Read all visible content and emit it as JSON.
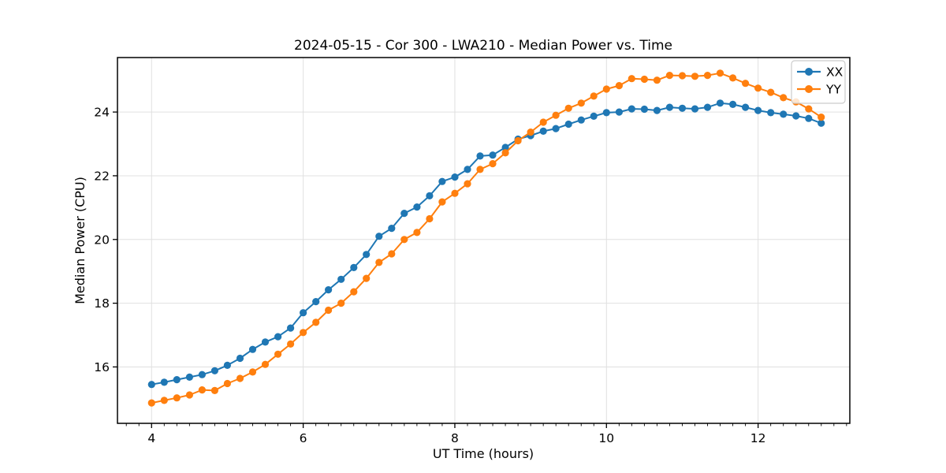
{
  "chart_data": {
    "type": "line",
    "title": "2024-05-15 - Cor 300 - LWA210 - Median Power vs. Time",
    "xlabel": "UT Time (hours)",
    "ylabel": "Median Power (CPU)",
    "xlim": [
      3.55,
      13.21
    ],
    "ylim": [
      14.23,
      25.71
    ],
    "xticks": [
      4,
      6,
      8,
      10,
      12
    ],
    "yticks": [
      16,
      18,
      20,
      22,
      24
    ],
    "x_minor_step": 0.166667,
    "grid": true,
    "grid_color": "#e0e0e0",
    "legend_position": "upper right",
    "x": [
      4.0,
      4.167,
      4.333,
      4.5,
      4.667,
      4.833,
      5.0,
      5.167,
      5.333,
      5.5,
      5.667,
      5.833,
      6.0,
      6.167,
      6.333,
      6.5,
      6.667,
      6.833,
      7.0,
      7.167,
      7.333,
      7.5,
      7.667,
      7.833,
      8.0,
      8.167,
      8.333,
      8.5,
      8.667,
      8.833,
      9.0,
      9.167,
      9.333,
      9.5,
      9.667,
      9.833,
      10.0,
      10.167,
      10.333,
      10.5,
      10.667,
      10.833,
      11.0,
      11.167,
      11.333,
      11.5,
      11.667,
      11.833,
      12.0,
      12.167,
      12.333,
      12.5,
      12.667,
      12.833
    ],
    "series": [
      {
        "name": "XX",
        "color": "#1f77b4",
        "values": [
          15.45,
          15.52,
          15.6,
          15.68,
          15.76,
          15.88,
          16.05,
          16.27,
          16.55,
          16.78,
          16.95,
          17.22,
          17.7,
          18.05,
          18.42,
          18.75,
          19.12,
          19.53,
          20.1,
          20.35,
          20.82,
          21.02,
          21.37,
          21.82,
          21.96,
          22.2,
          22.62,
          22.65,
          22.89,
          23.15,
          23.26,
          23.4,
          23.48,
          23.62,
          23.75,
          23.87,
          23.98,
          24.0,
          24.1,
          24.09,
          24.05,
          24.15,
          24.12,
          24.1,
          24.15,
          24.28,
          24.24,
          24.15,
          24.05,
          23.98,
          23.93,
          23.88,
          23.8,
          23.65
        ]
      },
      {
        "name": "YY",
        "color": "#ff7f0e",
        "values": [
          14.87,
          14.95,
          15.03,
          15.12,
          15.28,
          15.26,
          15.48,
          15.64,
          15.84,
          16.08,
          16.4,
          16.72,
          17.08,
          17.4,
          17.78,
          18.0,
          18.36,
          18.78,
          19.28,
          19.55,
          20.0,
          20.22,
          20.65,
          21.18,
          21.45,
          21.75,
          22.2,
          22.38,
          22.72,
          23.1,
          23.37,
          23.68,
          23.9,
          24.12,
          24.28,
          24.5,
          24.72,
          24.83,
          25.05,
          25.03,
          25.0,
          25.15,
          25.14,
          25.12,
          25.15,
          25.22,
          25.07,
          24.9,
          24.75,
          24.62,
          24.45,
          24.32,
          24.1,
          23.84
        ]
      }
    ]
  }
}
